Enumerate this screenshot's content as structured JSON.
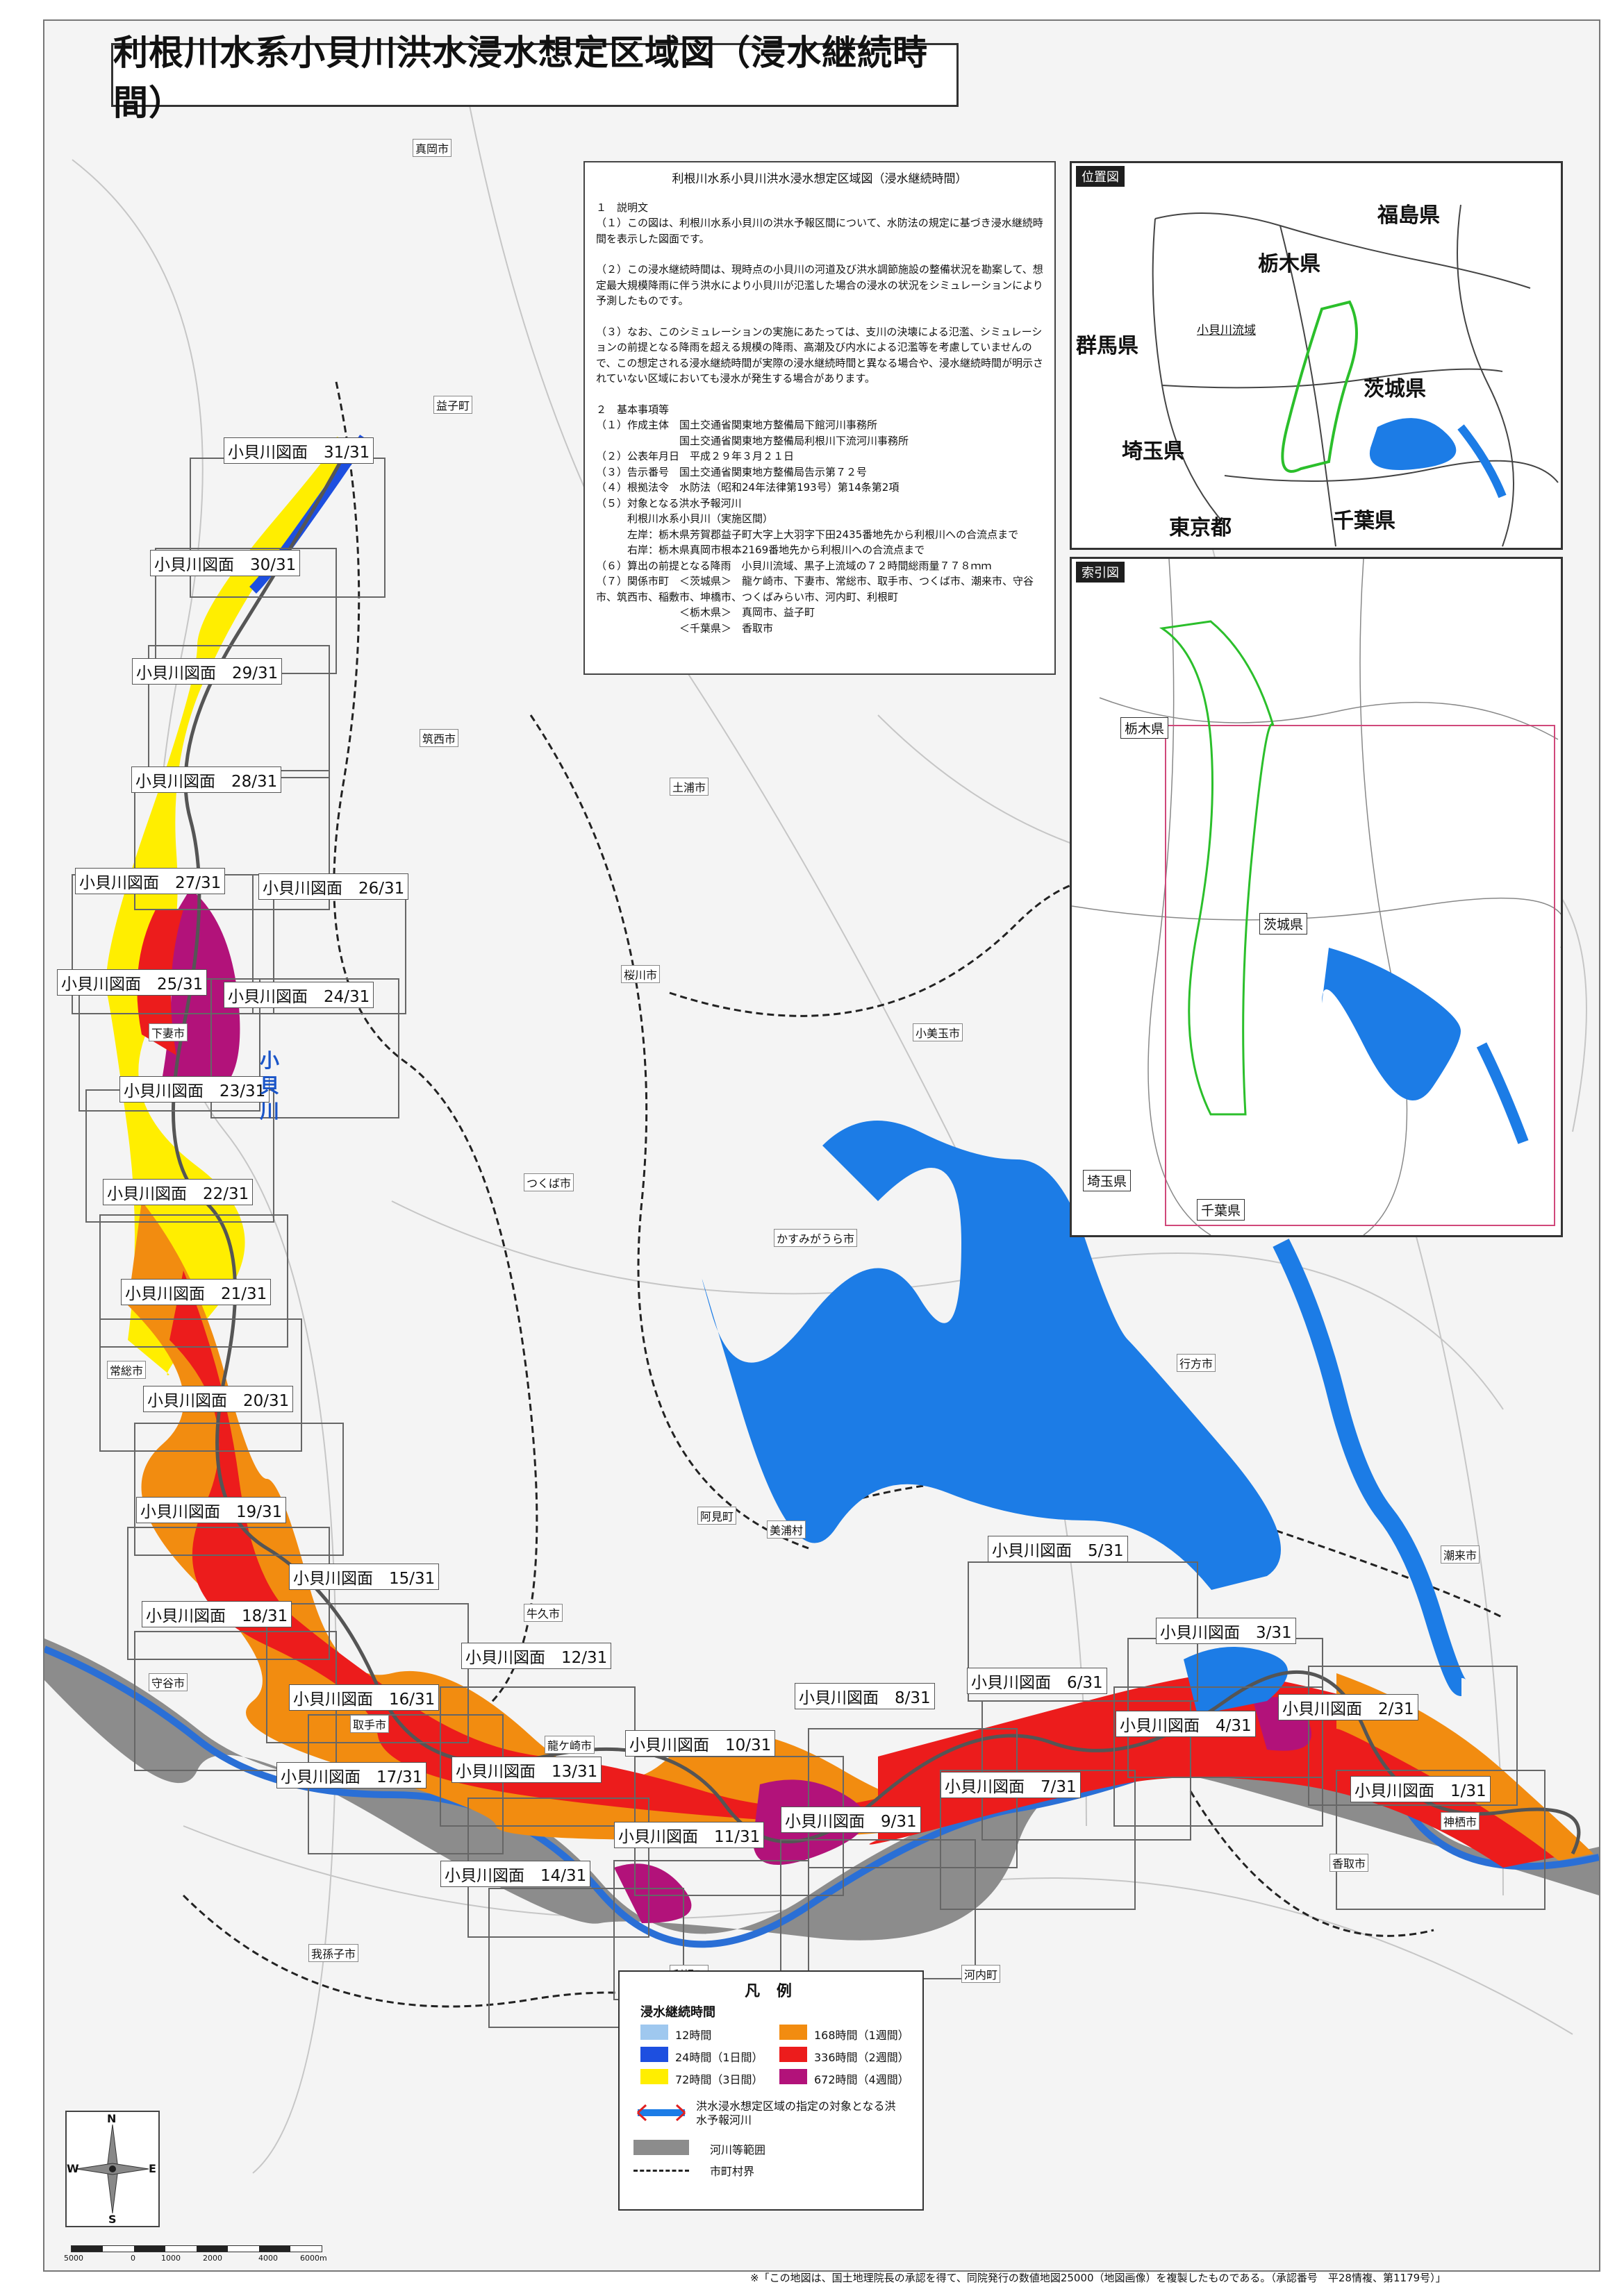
{
  "title": "利根川水系小貝川洪水浸水想定区域図（浸水継続時間）",
  "explanation": {
    "heading": "利根川水系小貝川洪水浸水想定区域図（浸水継続時間）",
    "section1_title": "１　説明文",
    "p1": "（１）この図は、利根川水系小貝川の洪水予報区間について、水防法の規定に基づき浸水継続時間を表示した図面です。",
    "p2": "（２）この浸水継続時間は、現時点の小貝川の河道及び洪水調節施設の整備状況を勘案して、想定最大規模降雨に伴う洪水により小貝川が氾濫した場合の浸水の状況をシミュレーションにより予測したものです。",
    "p3": "（３）なお、このシミュレーションの実施にあたっては、支川の決壊による氾濫、シミュレーションの前提となる降雨を超える規模の降雨、高潮及び内水による氾濫等を考慮していませんので、この想定される浸水継続時間が実際の浸水継続時間と異なる場合や、浸水継続時間が明示されていない区域においても浸水が発生する場合があります。",
    "section2_title": "２　基本事項等",
    "rows": [
      "（１）作成主体　国土交通省関東地方整備局下館河川事務所",
      "　　　　　　　　国土交通省関東地方整備局利根川下流河川事務所",
      "（２）公表年月日　平成２９年３月２１日",
      "（３）告示番号　国土交通省関東地方整備局告示第７２号",
      "（４）根拠法令　水防法（昭和24年法律第193号）第14条第2項",
      "（５）対象となる洪水予報河川",
      "　　　利根川水系小貝川（実施区間）",
      "　　　左岸：栃木県芳賀郡益子町大字上大羽字下田2435番地先から利根川への合流点まで",
      "　　　右岸：栃木県真岡市根本2169番地先から利根川への合流点まで",
      "（６）算出の前提となる降雨　小貝川流域、黒子上流域の７２時間総雨量７７８ｍｍ",
      "（７）関係市町　＜茨城県＞　龍ケ崎市、下妻市、常総市、取手市、つくば市、潮来市、守谷市、筑西市、稲敷市、坤橋市、つくばみらい市、河内町、利根町",
      "　　　　　　　　＜栃木県＞　真岡市、益子町",
      "　　　　　　　　＜千葉県＞　香取市"
    ]
  },
  "location_map": {
    "tag": "位置図",
    "prefectures": [
      "福島県",
      "栃木県",
      "群馬県",
      "茨城県",
      "埼玉県",
      "東京都",
      "千葉県"
    ],
    "basin_label": "小貝川流域"
  },
  "index_map": {
    "tag": "索引図",
    "prefectures": [
      "栃木県",
      "茨城県",
      "埼玉県",
      "千葉県"
    ]
  },
  "sheet_labels": [
    "小貝川図面　31/31",
    "小貝川図面　30/31",
    "小貝川図面　29/31",
    "小貝川図面　28/31",
    "小貝川図面　27/31",
    "小貝川図面　26/31",
    "小貝川図面　25/31",
    "小貝川図面　24/31",
    "小貝川図面　23/31",
    "小貝川図面　22/31",
    "小貝川図面　21/31",
    "小貝川図面　20/31",
    "小貝川図面　19/31",
    "小貝川図面　18/31",
    "小貝川図面　17/31",
    "小貝川図面　16/31",
    "小貝川図面　15/31",
    "小貝川図面　14/31",
    "小貝川図面　13/31",
    "小貝川図面　12/31",
    "小貝川図面　11/31",
    "小貝川図面　10/31",
    "小貝川図面　9/31",
    "小貝川図面　8/31",
    "小貝川図面　7/31",
    "小貝川図面　6/31",
    "小貝川図面　5/31",
    "小貝川図面　4/31",
    "小貝川図面　3/31",
    "小貝川図面　2/31",
    "小貝川図面　1/31"
  ],
  "city_labels": [
    "真岡市",
    "益子町",
    "筑西市",
    "桜川市",
    "下妻市",
    "常総市",
    "つくば市",
    "かすみがうら市",
    "小美玉市",
    "土浦市",
    "行方市",
    "阿見町",
    "美浦村",
    "牛久市",
    "取手市",
    "龍ケ崎市",
    "潮来市",
    "神栖市",
    "香取市",
    "我孫子市",
    "守谷市",
    "利根町",
    "河内町"
  ],
  "river_name": "小貝川",
  "legend": {
    "title": "凡 例",
    "subtitle": "浸水継続時間",
    "items": [
      {
        "label": "12時間",
        "color": "#9fc8ef"
      },
      {
        "label": "24時間（1日間）",
        "color": "#1d4fe0"
      },
      {
        "label": "72時間（3日間）",
        "color": "#ffee00"
      },
      {
        "label": "168時間（1週間）",
        "color": "#f28c10"
      },
      {
        "label": "336時間（2週間）",
        "color": "#ec1c1c"
      },
      {
        "label": "672時間（4週間）",
        "color": "#b2127a"
      }
    ],
    "river_target": "洪水浸水想定区域の指定の対象となる洪水予報河川",
    "river_area": "河川等範囲",
    "boundary": "市町村界"
  },
  "compass": {
    "n": "N",
    "s": "S",
    "e": "E",
    "w": "W"
  },
  "scale_ticks": [
    "5000",
    "0",
    "1000",
    "2000",
    "4000",
    "6000m"
  ],
  "footer_note": "※「この地図は、国土地理院長の承認を得て、同院発行の数値地図25000（地図画像）を複製したものである。（承認番号　平28情複、第1179号）」"
}
